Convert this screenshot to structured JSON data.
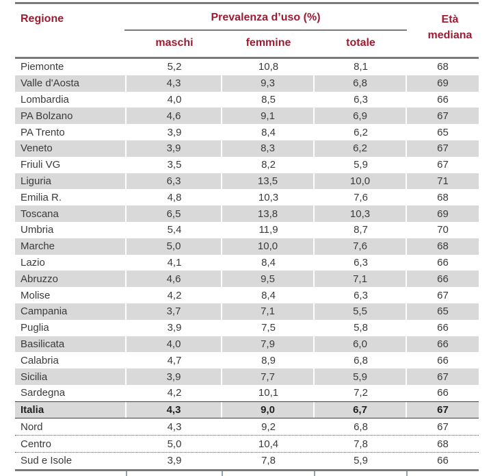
{
  "colors": {
    "accent_header_text": "#9e1b32",
    "row_stripe": "#d9d9d9",
    "rule_gray": "#7a7a7a",
    "body_text": "#3a3a3a"
  },
  "table": {
    "header": {
      "region": "Regione",
      "group_title": "Prevalenza d’uso (%)",
      "males": "maschi",
      "females": "femmine",
      "total": "totale",
      "age_line1": "Età",
      "age_line2": "mediana"
    },
    "rows": [
      {
        "region": "Piemonte",
        "males": "5,2",
        "females": "10,8",
        "total": "8,1",
        "median_age": "68",
        "shaded": false,
        "bold": false,
        "border_top": "none"
      },
      {
        "region": "Valle d'Aosta",
        "males": "4,3",
        "females": "9,3",
        "total": "6,8",
        "median_age": "69",
        "shaded": true,
        "bold": false,
        "border_top": "none"
      },
      {
        "region": "Lombardia",
        "males": "4,0",
        "females": "8,5",
        "total": "6,3",
        "median_age": "66",
        "shaded": false,
        "bold": false,
        "border_top": "none"
      },
      {
        "region": "PA Bolzano",
        "males": "4,6",
        "females": "9,1",
        "total": "6,9",
        "median_age": "67",
        "shaded": true,
        "bold": false,
        "border_top": "none"
      },
      {
        "region": "PA Trento",
        "males": "3,9",
        "females": "8,4",
        "total": "6,2",
        "median_age": "65",
        "shaded": false,
        "bold": false,
        "border_top": "none"
      },
      {
        "region": "Veneto",
        "males": "3,9",
        "females": "8,3",
        "total": "6,2",
        "median_age": "67",
        "shaded": true,
        "bold": false,
        "border_top": "none"
      },
      {
        "region": "Friuli VG",
        "males": "3,5",
        "females": "8,2",
        "total": "5,9",
        "median_age": "67",
        "shaded": false,
        "bold": false,
        "border_top": "none"
      },
      {
        "region": "Liguria",
        "males": "6,3",
        "females": "13,5",
        "total": "10,0",
        "median_age": "71",
        "shaded": true,
        "bold": false,
        "border_top": "none"
      },
      {
        "region": "Emilia R.",
        "males": "4,8",
        "females": "10,3",
        "total": "7,6",
        "median_age": "68",
        "shaded": false,
        "bold": false,
        "border_top": "none"
      },
      {
        "region": "Toscana",
        "males": "6,5",
        "females": "13,8",
        "total": "10,3",
        "median_age": "69",
        "shaded": true,
        "bold": false,
        "border_top": "none"
      },
      {
        "region": "Umbria",
        "males": "5,4",
        "females": "11,9",
        "total": "8,7",
        "median_age": "70",
        "shaded": false,
        "bold": false,
        "border_top": "none"
      },
      {
        "region": "Marche",
        "males": "5,0",
        "females": "10,0",
        "total": "7,6",
        "median_age": "68",
        "shaded": true,
        "bold": false,
        "border_top": "none"
      },
      {
        "region": "Lazio",
        "males": "4,1",
        "females": "8,4",
        "total": "6,3",
        "median_age": "66",
        "shaded": false,
        "bold": false,
        "border_top": "none"
      },
      {
        "region": "Abruzzo",
        "males": "4,6",
        "females": "9,5",
        "total": "7,1",
        "median_age": "66",
        "shaded": true,
        "bold": false,
        "border_top": "none"
      },
      {
        "region": "Molise",
        "males": "4,2",
        "females": "8,4",
        "total": "6,3",
        "median_age": "67",
        "shaded": false,
        "bold": false,
        "border_top": "none"
      },
      {
        "region": "Campania",
        "males": "3,7",
        "females": "7,1",
        "total": "5,5",
        "median_age": "65",
        "shaded": true,
        "bold": false,
        "border_top": "none"
      },
      {
        "region": "Puglia",
        "males": "3,9",
        "females": "7,5",
        "total": "5,8",
        "median_age": "66",
        "shaded": false,
        "bold": false,
        "border_top": "none"
      },
      {
        "region": "Basilicata",
        "males": "4,0",
        "females": "7,9",
        "total": "6,0",
        "median_age": "66",
        "shaded": true,
        "bold": false,
        "border_top": "none"
      },
      {
        "region": "Calabria",
        "males": "4,7",
        "females": "8,9",
        "total": "6,8",
        "median_age": "66",
        "shaded": false,
        "bold": false,
        "border_top": "none"
      },
      {
        "region": "Sicilia",
        "males": "3,9",
        "females": "7,7",
        "total": "5,9",
        "median_age": "67",
        "shaded": true,
        "bold": false,
        "border_top": "none"
      },
      {
        "region": "Sardegna",
        "males": "4,2",
        "females": "10,1",
        "total": "7,2",
        "median_age": "66",
        "shaded": false,
        "bold": false,
        "border_top": "none"
      },
      {
        "region": "Italia",
        "males": "4,3",
        "females": "9,0",
        "total": "6,7",
        "median_age": "67",
        "shaded": true,
        "bold": true,
        "border_top": "italia"
      },
      {
        "region": "Nord",
        "males": "4,3",
        "females": "9,2",
        "total": "6,8",
        "median_age": "67",
        "shaded": false,
        "bold": false,
        "border_top": "none",
        "summary": true
      },
      {
        "region": "Centro",
        "males": "5,0",
        "females": "10,4",
        "total": "7,8",
        "median_age": "68",
        "shaded": false,
        "bold": false,
        "border_top": "dotted",
        "summary": true
      },
      {
        "region": "Sud e Isole",
        "males": "3,9",
        "females": "7,8",
        "total": "5,9",
        "median_age": "66",
        "shaded": false,
        "bold": false,
        "border_top": "dotted",
        "summary": true
      }
    ]
  }
}
